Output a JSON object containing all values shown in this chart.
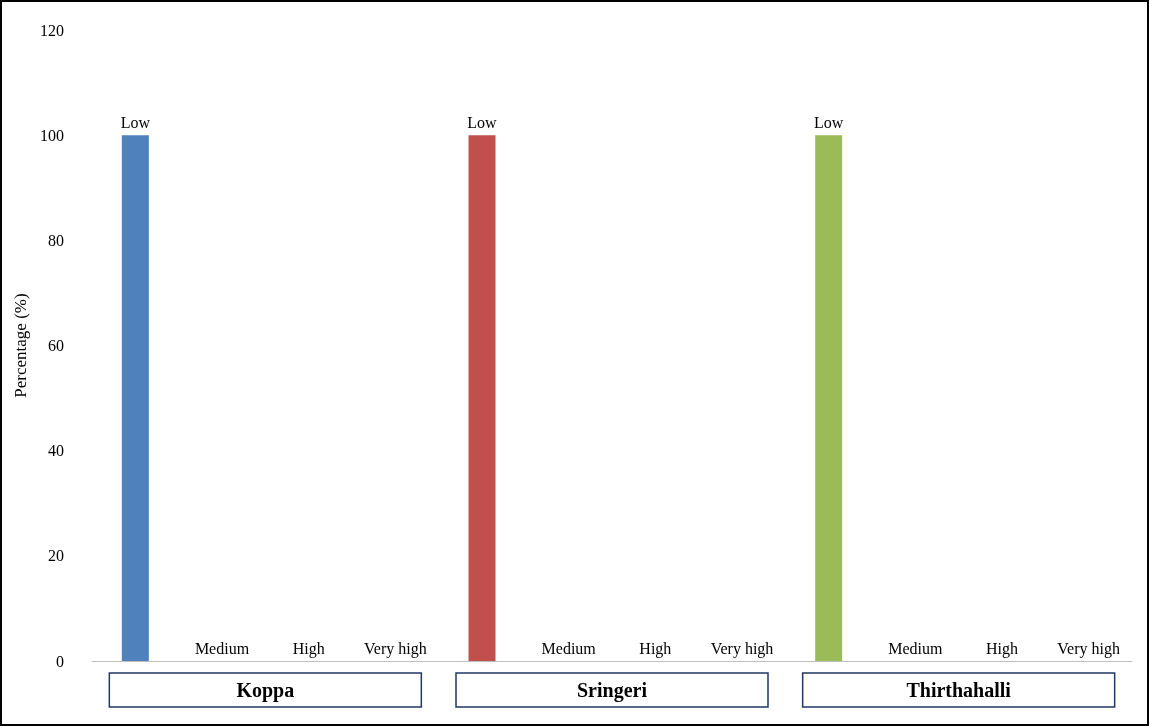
{
  "chart_data": {
    "type": "bar",
    "ylabel": "Percentage (%)",
    "categories": [
      "Low",
      "Medium",
      "High",
      "Very high",
      "Low",
      "Medium",
      "High",
      "Very high",
      "Low",
      "Medium",
      "High",
      "Very high"
    ],
    "series": [
      {
        "color": "#4f81bd",
        "values": [
          100,
          0,
          0,
          0,
          null,
          null,
          null,
          null,
          null,
          null,
          null,
          null
        ]
      },
      {
        "color": "#c0504d",
        "values": [
          null,
          null,
          null,
          null,
          100,
          0,
          0,
          0,
          null,
          null,
          null,
          null
        ]
      },
      {
        "color": "#9bbb59",
        "values": [
          null,
          null,
          null,
          null,
          null,
          null,
          null,
          null,
          100,
          0,
          0,
          0
        ]
      }
    ],
    "annotations": [
      "Koppa",
      "Sringeri",
      "Thirthahalli"
    ],
    "ylim": [
      0,
      120
    ],
    "yticks": [
      0,
      20,
      40,
      60,
      80,
      100,
      120
    ],
    "grid": false,
    "tick_labels": "y"
  }
}
